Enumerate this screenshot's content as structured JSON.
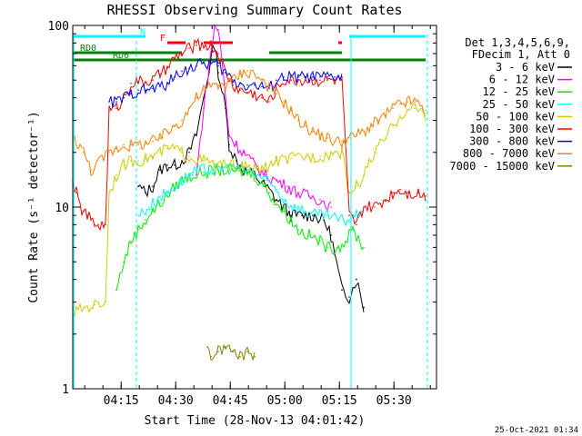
{
  "chart_data": {
    "type": "line",
    "title": "RHESSI Observing Summary Count Rates",
    "xlabel": "Start Time (28-Nov-13 04:01:42)",
    "ylabel": "Count Rate (s⁻¹ detector⁻¹)",
    "yscale": "log",
    "ylim": [
      1,
      100
    ],
    "xlim_minutes": [
      0,
      100
    ],
    "x_ticks": [
      {
        "t": 13.3,
        "label": "04:15"
      },
      {
        "t": 28.3,
        "label": "04:30"
      },
      {
        "t": 43.3,
        "label": "04:45"
      },
      {
        "t": 58.3,
        "label": "05:00"
      },
      {
        "t": 73.3,
        "label": "05:15"
      },
      {
        "t": 88.3,
        "label": "05:30"
      }
    ],
    "y_ticks": [
      {
        "v": 1,
        "label": "1"
      },
      {
        "v": 10,
        "label": "10"
      },
      {
        "v": 100,
        "label": "100"
      }
    ],
    "legend_header": [
      "Det 1,3,4,5,6,9,",
      "FDecim 1, Att 0"
    ],
    "legend_position": "right",
    "series": [
      {
        "name": "3 - 6 keV",
        "color": "#000000",
        "points": [
          [
            18,
            13
          ],
          [
            20,
            12
          ],
          [
            22,
            13
          ],
          [
            24,
            16
          ],
          [
            26,
            17
          ],
          [
            28,
            17
          ],
          [
            30,
            18
          ],
          [
            32,
            20
          ],
          [
            34,
            25
          ],
          [
            36,
            40
          ],
          [
            38,
            65
          ],
          [
            39,
            80
          ],
          [
            40,
            55
          ],
          [
            42,
            35
          ],
          [
            43,
            22
          ],
          [
            45,
            18
          ],
          [
            47,
            16
          ],
          [
            50,
            15
          ],
          [
            53,
            13
          ],
          [
            56,
            11
          ],
          [
            58,
            10
          ],
          [
            60,
            9
          ],
          [
            63,
            9
          ],
          [
            66,
            9
          ],
          [
            69,
            8.5
          ],
          [
            71,
            7
          ],
          [
            72,
            5.5
          ],
          [
            74,
            3.5
          ],
          [
            76,
            3.2
          ],
          [
            78,
            4
          ],
          [
            80,
            2.8
          ]
        ]
      },
      {
        "name": "6 - 12 keV",
        "color": "#ff00ff",
        "points": [
          [
            34,
            15
          ],
          [
            36,
            35
          ],
          [
            38,
            70
          ],
          [
            39,
            100
          ],
          [
            40,
            95
          ],
          [
            41,
            65
          ],
          [
            42,
            40
          ],
          [
            43,
            25
          ],
          [
            45,
            22
          ],
          [
            47,
            20
          ],
          [
            50,
            17
          ],
          [
            53,
            15
          ],
          [
            56,
            14
          ],
          [
            59,
            13
          ],
          [
            62,
            12
          ],
          [
            65,
            11.5
          ],
          [
            68,
            11
          ],
          [
            71,
            10
          ]
        ]
      },
      {
        "name": "12 - 25 keV",
        "color": "#00ee00",
        "points": [
          [
            12,
            3.5
          ],
          [
            14,
            5
          ],
          [
            16,
            6.5
          ],
          [
            18,
            7.5
          ],
          [
            20,
            8.5
          ],
          [
            22,
            9.5
          ],
          [
            24,
            10.5
          ],
          [
            26,
            11.5
          ],
          [
            28,
            13
          ],
          [
            30,
            14
          ],
          [
            33,
            15
          ],
          [
            36,
            15.5
          ],
          [
            40,
            16
          ],
          [
            44,
            16
          ],
          [
            48,
            15.5
          ],
          [
            50,
            15
          ],
          [
            52,
            13.5
          ],
          [
            54,
            12
          ],
          [
            56,
            10.5
          ],
          [
            58,
            9.5
          ],
          [
            60,
            8.5
          ],
          [
            62,
            7.5
          ],
          [
            65,
            7
          ],
          [
            68,
            6.5
          ],
          [
            70,
            6
          ],
          [
            73,
            6
          ],
          [
            75,
            6.5
          ],
          [
            77,
            7.5
          ],
          [
            80,
            6
          ]
        ]
      },
      {
        "name": "25 - 50 keV",
        "color": "#00ffff",
        "points": [
          [
            18,
            9
          ],
          [
            21,
            10
          ],
          [
            24,
            11.5
          ],
          [
            26,
            12
          ],
          [
            28,
            13
          ],
          [
            30,
            14
          ],
          [
            32,
            15
          ],
          [
            35,
            16
          ],
          [
            38,
            16
          ],
          [
            42,
            16.5
          ],
          [
            46,
            16
          ],
          [
            50,
            15.5
          ],
          [
            53,
            14
          ],
          [
            56,
            12.5
          ],
          [
            58,
            11
          ],
          [
            61,
            10
          ],
          [
            64,
            9.5
          ],
          [
            67,
            9
          ],
          [
            70,
            9
          ],
          [
            73,
            8.5
          ],
          [
            76,
            8.5
          ],
          [
            78,
            9
          ],
          [
            80,
            10
          ]
        ]
      },
      {
        "name": "50 - 100 keV",
        "color": "#cccc00",
        "points": [
          [
            0,
            2.6
          ],
          [
            3,
            2.8
          ],
          [
            6,
            2.9
          ],
          [
            9,
            3
          ],
          [
            10,
            12
          ],
          [
            12,
            15
          ],
          [
            14,
            17
          ],
          [
            16,
            18
          ],
          [
            18,
            18
          ],
          [
            20,
            18.5
          ],
          [
            22,
            19
          ],
          [
            24,
            20
          ],
          [
            26,
            21
          ],
          [
            28,
            21
          ],
          [
            30,
            20
          ],
          [
            32,
            19
          ],
          [
            36,
            18
          ],
          [
            40,
            17
          ],
          [
            44,
            17
          ],
          [
            48,
            16.5
          ],
          [
            52,
            16
          ],
          [
            56,
            18
          ],
          [
            60,
            18.5
          ],
          [
            64,
            19
          ],
          [
            68,
            19
          ],
          [
            72,
            20
          ],
          [
            74,
            20
          ],
          [
            76,
            12
          ],
          [
            78,
            13
          ],
          [
            80,
            15
          ],
          [
            83,
            20
          ],
          [
            86,
            24
          ],
          [
            88,
            28
          ],
          [
            90,
            32
          ],
          [
            92,
            34
          ],
          [
            94,
            35
          ],
          [
            96,
            34
          ],
          [
            97,
            32
          ]
        ]
      },
      {
        "name": "100 - 300 keV",
        "color": "#ff0000",
        "points": [
          [
            0,
            14
          ],
          [
            1,
            12
          ],
          [
            2,
            10
          ],
          [
            3,
            9.5
          ],
          [
            4,
            9
          ],
          [
            5,
            8.5
          ],
          [
            6,
            8
          ],
          [
            7,
            8
          ],
          [
            9,
            8
          ],
          [
            10,
            34
          ],
          [
            12,
            35
          ],
          [
            14,
            40
          ],
          [
            16,
            48
          ],
          [
            18,
            49
          ],
          [
            20,
            49
          ],
          [
            22,
            50
          ],
          [
            24,
            54
          ],
          [
            26,
            58
          ],
          [
            28,
            66
          ],
          [
            30,
            70
          ],
          [
            32,
            75
          ],
          [
            34,
            78
          ],
          [
            38,
            78
          ],
          [
            40,
            70
          ],
          [
            42,
            55
          ],
          [
            44,
            47
          ],
          [
            46,
            44
          ],
          [
            48,
            43
          ],
          [
            50,
            42
          ],
          [
            52,
            40
          ],
          [
            54,
            38
          ],
          [
            56,
            45
          ],
          [
            58,
            50
          ],
          [
            60,
            50
          ],
          [
            62,
            50
          ],
          [
            64,
            50
          ],
          [
            66,
            50
          ],
          [
            68,
            50
          ],
          [
            70,
            50
          ],
          [
            72,
            50
          ],
          [
            74,
            50
          ],
          [
            76,
            9
          ],
          [
            78,
            8
          ],
          [
            80,
            10
          ],
          [
            83,
            10
          ],
          [
            86,
            11
          ],
          [
            88,
            12
          ],
          [
            90,
            12.5
          ],
          [
            92,
            12
          ],
          [
            95,
            12
          ],
          [
            97,
            11.5
          ]
        ]
      },
      {
        "name": "300 - 800 keV",
        "color": "#0000ff",
        "points": [
          [
            10,
            38
          ],
          [
            12,
            38
          ],
          [
            14,
            40
          ],
          [
            16,
            42
          ],
          [
            18,
            44
          ],
          [
            20,
            44
          ],
          [
            22,
            45
          ],
          [
            24,
            46
          ],
          [
            26,
            48
          ],
          [
            28,
            52
          ],
          [
            30,
            56
          ],
          [
            32,
            58
          ],
          [
            34,
            60
          ],
          [
            36,
            62
          ],
          [
            38,
            62
          ],
          [
            40,
            60
          ],
          [
            42,
            55
          ],
          [
            44,
            50
          ],
          [
            46,
            48
          ],
          [
            48,
            47
          ],
          [
            50,
            47
          ],
          [
            52,
            46
          ],
          [
            54,
            45
          ],
          [
            56,
            50
          ],
          [
            58,
            52
          ],
          [
            60,
            52
          ],
          [
            62,
            52
          ],
          [
            64,
            52
          ],
          [
            66,
            52
          ],
          [
            68,
            52
          ],
          [
            70,
            52
          ],
          [
            72,
            52
          ],
          [
            74,
            52
          ]
        ]
      },
      {
        "name": "800 - 7000 keV",
        "color": "#ff8000",
        "points": [
          [
            0,
            24
          ],
          [
            2,
            22
          ],
          [
            3,
            20
          ],
          [
            4,
            18
          ],
          [
            5,
            16
          ],
          [
            10,
            20
          ],
          [
            12,
            21
          ],
          [
            14,
            22
          ],
          [
            16,
            22
          ],
          [
            18,
            22
          ],
          [
            20,
            22.5
          ],
          [
            22,
            23
          ],
          [
            24,
            24
          ],
          [
            26,
            26
          ],
          [
            28,
            28
          ],
          [
            30,
            30
          ],
          [
            32,
            35
          ],
          [
            34,
            40
          ],
          [
            36,
            44
          ],
          [
            38,
            46
          ],
          [
            40,
            47
          ],
          [
            42,
            48
          ],
          [
            44,
            50
          ],
          [
            46,
            54
          ],
          [
            48,
            56
          ],
          [
            50,
            54
          ],
          [
            52,
            50
          ],
          [
            54,
            46
          ],
          [
            56,
            42
          ],
          [
            58,
            38
          ],
          [
            60,
            34
          ],
          [
            62,
            30
          ],
          [
            64,
            28
          ],
          [
            66,
            26
          ],
          [
            68,
            25
          ],
          [
            70,
            24
          ],
          [
            72,
            23
          ],
          [
            74,
            23
          ],
          [
            76,
            24
          ],
          [
            78,
            25
          ],
          [
            80,
            26
          ],
          [
            82,
            28
          ],
          [
            84,
            30
          ],
          [
            86,
            32
          ],
          [
            88,
            35
          ],
          [
            90,
            37
          ],
          [
            92,
            38
          ],
          [
            94,
            38
          ],
          [
            96,
            36
          ],
          [
            97,
            34
          ]
        ]
      },
      {
        "name": "7000 - 15000 keV",
        "color": "#808000",
        "points": [
          [
            37,
            1.7
          ],
          [
            38,
            1.5
          ],
          [
            40,
            1.6
          ],
          [
            42,
            1.7
          ],
          [
            44,
            1.6
          ],
          [
            46,
            1.5
          ],
          [
            48,
            1.6
          ],
          [
            50,
            1.5
          ]
        ]
      }
    ],
    "flag_bars": [
      {
        "label": "N",
        "color": "#00ffff",
        "segments": [
          [
            0,
            20
          ],
          [
            76,
            97
          ]
        ]
      },
      {
        "label": "F",
        "color": "#ff0000",
        "segments": [
          [
            26,
            31
          ],
          [
            36,
            44
          ],
          [
            73,
            74
          ]
        ]
      },
      {
        "label": "RD0",
        "color": "#008000",
        "segments": [
          [
            0,
            30
          ],
          [
            54,
            74
          ]
        ]
      },
      {
        "label": "RD6",
        "color": "#008000",
        "segments": [
          [
            0,
            97
          ]
        ]
      }
    ],
    "vertical_lines": {
      "color": "#00ffff",
      "solid": [
        0.3,
        76.5
      ],
      "dashed": [
        17.5,
        97.5
      ]
    },
    "timestamp": "25-Oct-2021 01:34"
  }
}
